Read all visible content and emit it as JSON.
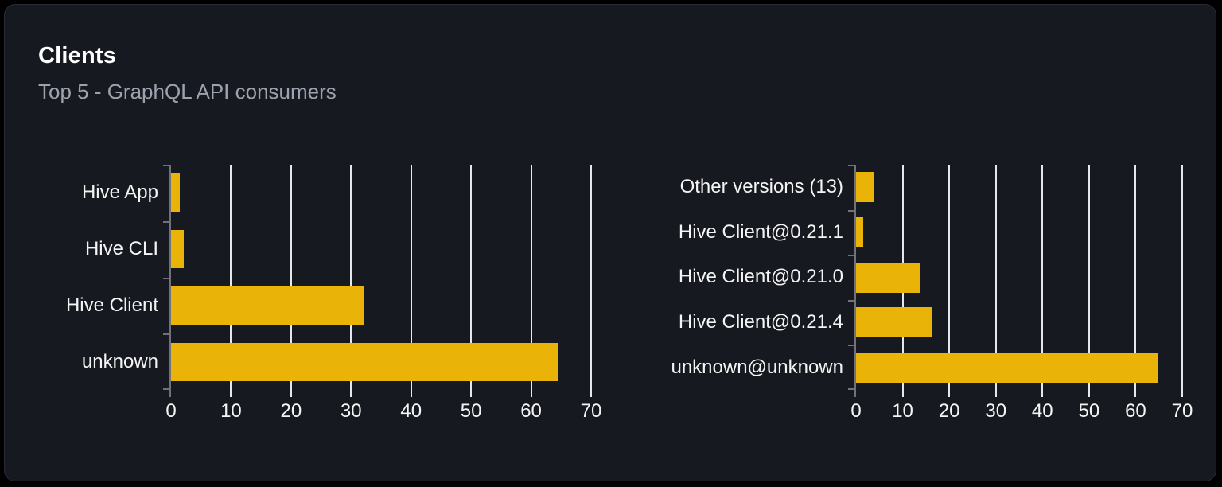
{
  "card": {
    "title": "Clients",
    "subtitle": "Top 5 - GraphQL API consumers"
  },
  "colors": {
    "bar": "#eab308",
    "gridline": "#e5e7eb",
    "axis": "#71717a",
    "label_text": "#f4f4f5",
    "subtitle_text": "#9ca3af",
    "card_background": "#16191f",
    "card_border": "#282b33",
    "page_background": "#000000"
  },
  "chart_data": [
    {
      "type": "bar",
      "orientation": "horizontal",
      "name": "clients-by-name",
      "categories": [
        "Hive App",
        "Hive CLI",
        "Hive Client",
        "unknown"
      ],
      "values": [
        1.5,
        2.1,
        32.2,
        64.5
      ],
      "xlim": [
        0,
        70
      ],
      "xticks": [
        0,
        10,
        20,
        30,
        40,
        50,
        60,
        70
      ],
      "grid": true,
      "legend": false
    },
    {
      "type": "bar",
      "orientation": "horizontal",
      "name": "clients-by-version",
      "categories": [
        "Other versions (13)",
        "Hive Client@0.21.1",
        "Hive Client@0.21.0",
        "Hive Client@0.21.4",
        "unknown@unknown"
      ],
      "values": [
        3.8,
        1.5,
        13.8,
        16.4,
        64.8
      ],
      "xlim": [
        0,
        70
      ],
      "xticks": [
        0,
        10,
        20,
        30,
        40,
        50,
        60,
        70
      ],
      "grid": true,
      "legend": false
    }
  ]
}
